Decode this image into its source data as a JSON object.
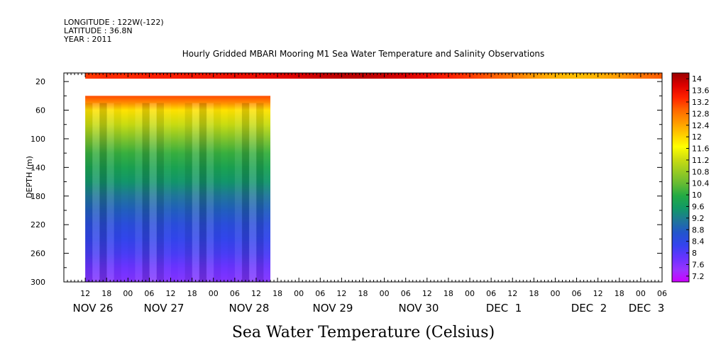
{
  "meta": {
    "longitude": "LONGITUDE : 122W(-122)",
    "latitude": "LATITUDE : 36.8N",
    "year": "YEAR : 2011"
  },
  "chart_title": "Hourly Gridded MBARI Mooring M1 Sea Water Temperature and Salinity Observations",
  "footer_title": "Sea Water Temperature (Celsius)",
  "colors": {
    "palette_low_to_high": [
      "#cc00ff",
      "#9933ff",
      "#6633ff",
      "#3344ee",
      "#2255cc",
      "#1f7799",
      "#119966",
      "#22aa44",
      "#66bb33",
      "#99cc22",
      "#ccdd11",
      "#ffff00",
      "#ffcc00",
      "#ff9900",
      "#ff6600",
      "#ff2200",
      "#dd0000",
      "#990000"
    ]
  },
  "chart_data": {
    "type": "heatmap",
    "title": "Hourly Gridded MBARI Mooring M1 Sea Water Temperature and Salinity Observations",
    "ylabel": "DEPTH (m)",
    "yticks": [
      "20",
      "60",
      "100",
      "140",
      "180",
      "220",
      "260",
      "300"
    ],
    "ylim": [
      8,
      300
    ],
    "y_inverted": true,
    "x_hour_labels": [
      "12",
      "18",
      "00",
      "06",
      "12",
      "18",
      "00",
      "06",
      "12",
      "18",
      "00",
      "06",
      "12",
      "18",
      "00",
      "06",
      "12",
      "18",
      "00",
      "06",
      "12",
      "18",
      "00",
      "06",
      "12",
      "18",
      "00",
      "06"
    ],
    "x_day_labels": [
      "NOV 26",
      "NOV 27",
      "NOV 28",
      "NOV 29",
      "NOV 30",
      "DEC  1",
      "DEC  2",
      "DEC  3"
    ],
    "x_range_hours": [
      0,
      168
    ],
    "colorbar": {
      "levels": [
        "7.2",
        "7.6",
        "8",
        "8.4",
        "8.8",
        "9.2",
        "9.6",
        "10",
        "10.4",
        "10.8",
        "11.2",
        "11.6",
        "12",
        "12.4",
        "12.8",
        "13.2",
        "13.6",
        "14"
      ],
      "min": 7.0,
      "max": 14.2
    },
    "surface_layer": {
      "depth_range_m": [
        8,
        16
      ],
      "time_range_hours": [
        6,
        168
      ],
      "temperature_c": [
        13.2,
        13.3,
        13.3,
        13.4,
        13.4,
        13.5,
        13.5,
        13.6,
        13.6,
        13.7,
        13.8,
        13.9,
        14.0,
        14.0,
        13.9,
        13.8,
        13.6,
        13.4,
        13.2,
        13.0,
        12.8,
        12.5,
        12.3,
        12.2,
        12.3,
        12.5,
        12.8,
        13.0
      ]
    },
    "deep_profile": {
      "depth_range_m": [
        40,
        300
      ],
      "time_range_hours": [
        6,
        58
      ],
      "depths_m": [
        40,
        50,
        60,
        80,
        100,
        120,
        140,
        160,
        180,
        200,
        220,
        240,
        260,
        280,
        300
      ],
      "temperature_c": [
        13.1,
        12.6,
        11.9,
        11.2,
        10.6,
        10.1,
        9.8,
        9.5,
        9.1,
        8.8,
        8.5,
        8.3,
        8.1,
        7.8,
        7.6
      ]
    }
  }
}
